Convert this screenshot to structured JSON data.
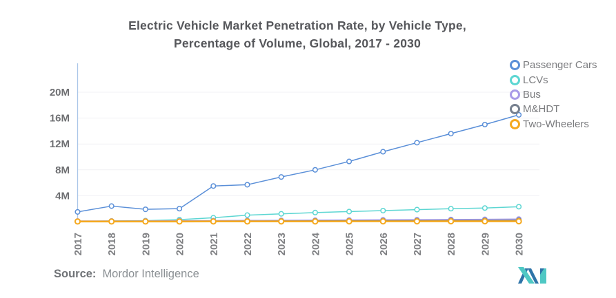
{
  "title": {
    "line1": "Electric Vehicle Market Penetration Rate, by Vehicle Type,",
    "line2": "Percentage of Volume, Global, 2017 - 2030"
  },
  "chart_data": {
    "type": "line",
    "title": "Electric Vehicle Market Penetration Rate, by Vehicle Type, Percentage of Volume, Global, 2017 - 2030",
    "x": [
      "2017",
      "2018",
      "2019",
      "2020",
      "2021",
      "2022",
      "2023",
      "2024",
      "2025",
      "2026",
      "2027",
      "2028",
      "2029",
      "2030"
    ],
    "y_ticks": [
      "4M",
      "8M",
      "12M",
      "16M",
      "20M"
    ],
    "y_tick_values": [
      4,
      8,
      12,
      16,
      20
    ],
    "y_unit": "M",
    "ylim": [
      0,
      24
    ],
    "grid": "horizontal",
    "legend_position": "top-right",
    "series": [
      {
        "name": "Passenger Cars",
        "color": "#5a8fd8",
        "values": [
          1.5,
          2.4,
          1.9,
          2.0,
          5.5,
          5.7,
          6.9,
          8.0,
          9.3,
          10.8,
          12.2,
          13.6,
          15.0,
          16.5
        ]
      },
      {
        "name": "LCVs",
        "color": "#5cd6d2",
        "values": [
          0.05,
          0.1,
          0.15,
          0.3,
          0.6,
          1.0,
          1.2,
          1.4,
          1.55,
          1.7,
          1.85,
          2.0,
          2.1,
          2.3
        ]
      },
      {
        "name": "Bus",
        "color": "#a99be8",
        "values": [
          0.1,
          0.1,
          0.12,
          0.14,
          0.16,
          0.18,
          0.2,
          0.22,
          0.25,
          0.28,
          0.3,
          0.33,
          0.36,
          0.4
        ]
      },
      {
        "name": "M&HDT",
        "color": "#76808f",
        "values": [
          0.03,
          0.04,
          0.05,
          0.06,
          0.08,
          0.09,
          0.1,
          0.12,
          0.13,
          0.15,
          0.16,
          0.18,
          0.2,
          0.22
        ]
      },
      {
        "name": "Two-Wheelers",
        "color": "#f5a91f",
        "line_width": 2.6,
        "values": [
          0.02,
          0.02,
          0.02,
          0.02,
          0.03,
          0.03,
          0.03,
          0.03,
          0.04,
          0.04,
          0.04,
          0.05,
          0.05,
          0.05
        ]
      }
    ]
  },
  "axis": {
    "color": "#a9c6e8",
    "grid_color": "#f1f1f4",
    "y_label_color": "#6f7073",
    "x_label_color": "#7e7f82"
  },
  "footer": {
    "source_label": "Source:",
    "source_value": "Mordor Intelligence"
  },
  "brand": {
    "teal": "#4fc8c4",
    "blue": "#2e74a8"
  }
}
